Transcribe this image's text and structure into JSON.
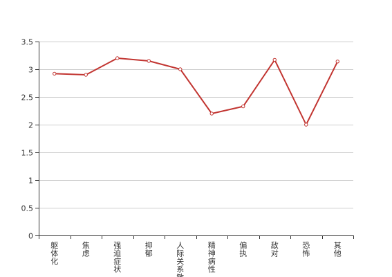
{
  "colors": {
    "series": "#c23531",
    "grid": "#cccccc",
    "axis": "#333333",
    "text": "#333333",
    "point_fill": "#ffffff"
  },
  "chart_data": {
    "type": "line",
    "categories": [
      "躯体化",
      "焦虑",
      "强迫症状",
      "抑郁",
      "人际关系敏感",
      "精神病性",
      "偏执",
      "敌对",
      "恐怖",
      "其他"
    ],
    "series": [
      {
        "values": [
          2.92,
          2.9,
          3.2,
          3.15,
          3.0,
          2.2,
          2.33,
          3.17,
          2.0,
          3.14
        ]
      }
    ],
    "ylim": [
      0,
      3.5
    ],
    "yticks": [
      0,
      0.5,
      1,
      1.5,
      2,
      2.5,
      3,
      3.5
    ],
    "grid": true,
    "legend": "none",
    "title": "",
    "xlabel": "",
    "ylabel": ""
  }
}
